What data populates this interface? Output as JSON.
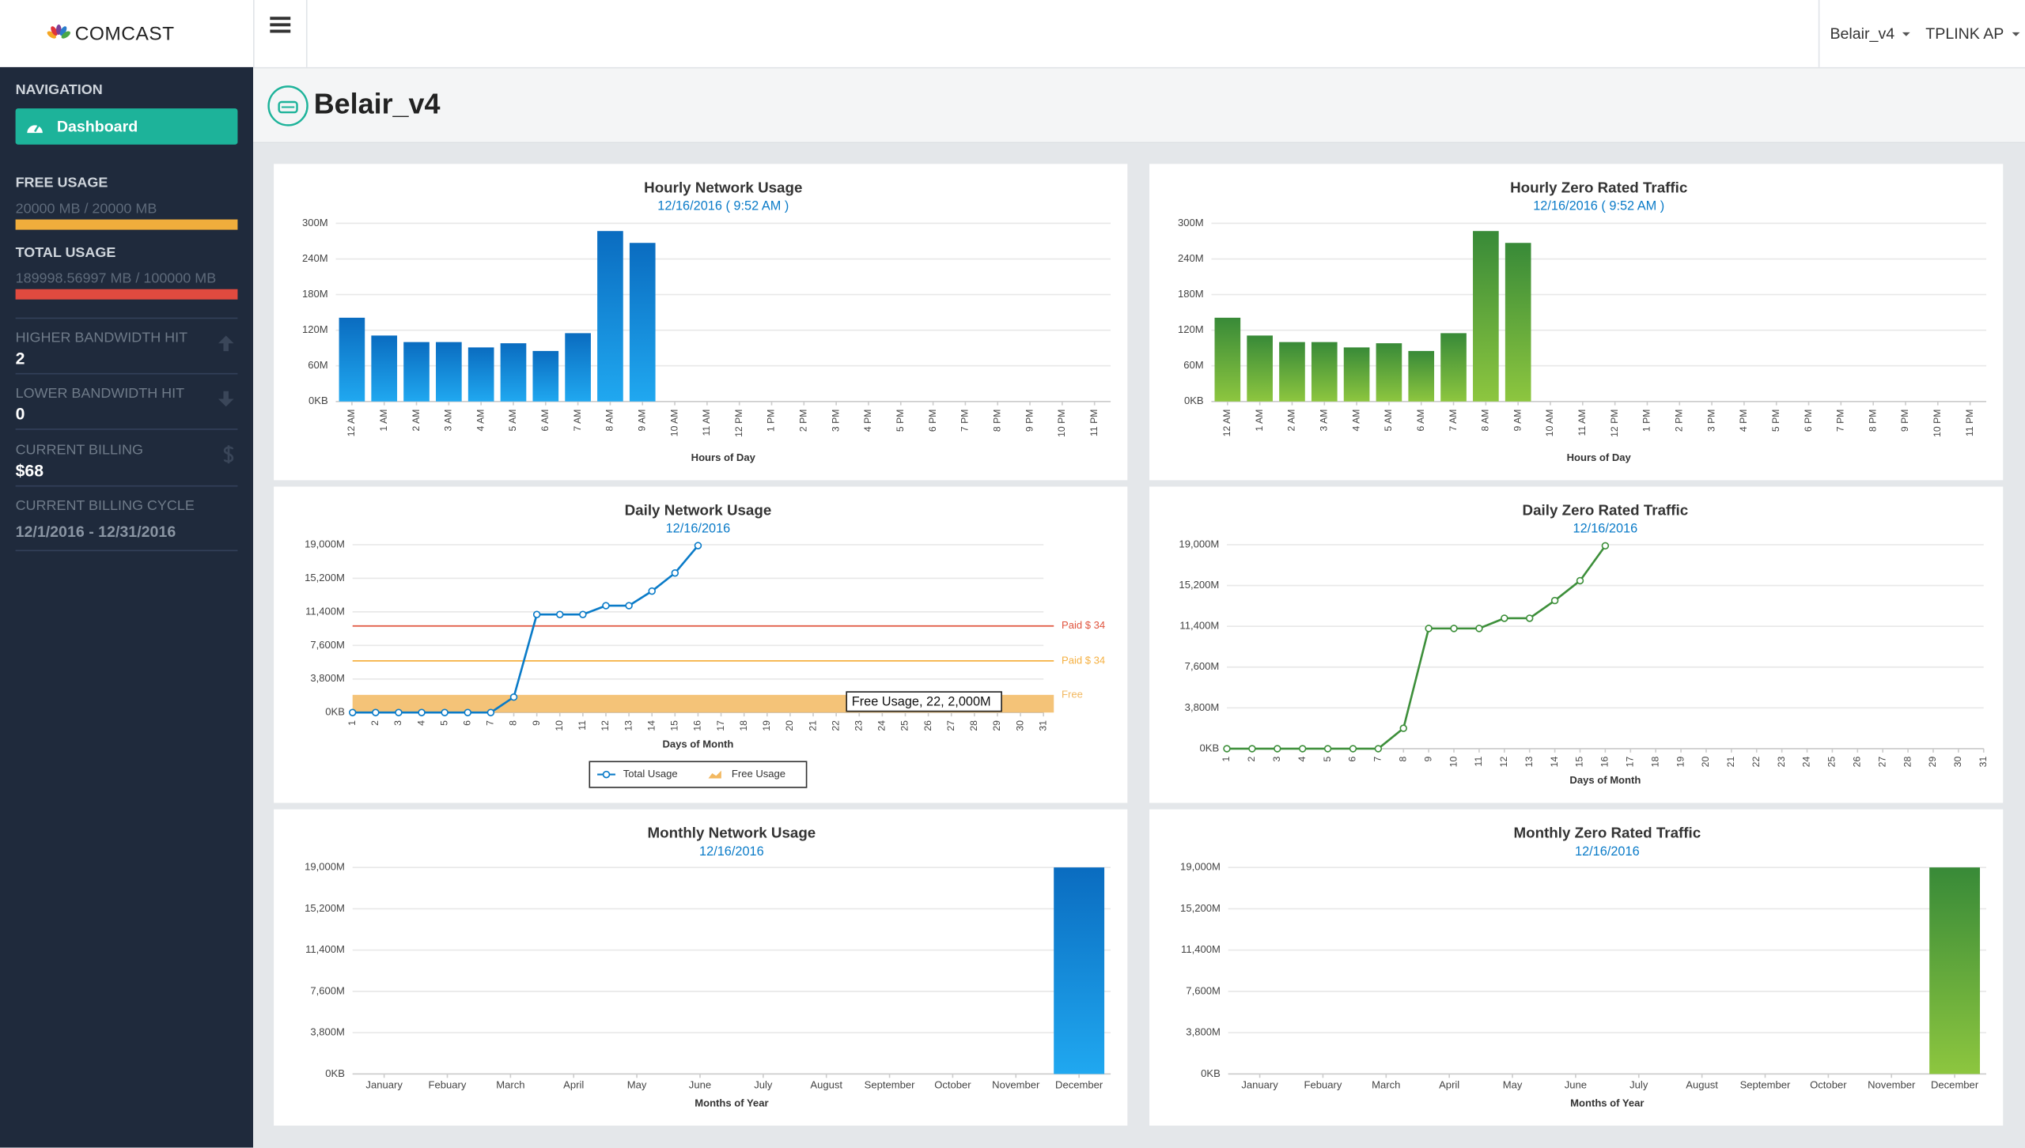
{
  "header": {
    "logo": "COMCAST",
    "site_selector": "Belair_v4",
    "device_selector": "TPLINK AP"
  },
  "sidebar": {
    "navigation_heading": "NAVIGATION",
    "nav_items": [
      "Dashboard"
    ],
    "stats": [
      {
        "label": "FREE USAGE",
        "value": "20000 MB / 20000 MB"
      },
      {
        "label": "TOTAL USAGE",
        "value": "189998.56997 MB / 100000 MB"
      },
      {
        "label": "HIGHER BANDWIDTH HIT",
        "value": "2"
      },
      {
        "label": "LOWER BANDWIDTH HIT",
        "value": "0"
      },
      {
        "label": "CURRENT BILLING",
        "value": "$68"
      },
      {
        "label": "CURRENT BILLING CYCLE",
        "value": "12/1/2016 - 12/31/2016"
      }
    ]
  },
  "page": {
    "title": "Belair_v4"
  },
  "chart_data": [
    {
      "type": "bar",
      "title": "Hourly Network Usage",
      "subtitle": "12/16/2016 ( 9:52 AM )",
      "x_label": "Hours of Day",
      "categories": [
        "12 AM",
        "1 AM",
        "2 AM",
        "3 AM",
        "4 AM",
        "5 AM",
        "6 AM",
        "7 AM",
        "8 AM",
        "9 AM",
        "10 AM",
        "11 AM",
        "12 PM",
        "1 PM",
        "2 PM",
        "3 PM",
        "4 PM",
        "5 PM",
        "6 PM",
        "7 PM",
        "8 PM",
        "9 PM",
        "10 PM",
        "11 PM"
      ],
      "values": [
        141,
        111,
        100,
        100,
        91,
        98,
        85,
        115,
        287,
        267,
        null,
        null,
        null,
        null,
        null,
        null,
        null,
        null,
        null,
        null,
        null,
        null,
        null,
        null
      ],
      "color": "#0a6cc0",
      "color2": "#20a8f0",
      "ylim": [
        0,
        300
      ],
      "yticks": [
        {
          "value": 0,
          "label": "0KB"
        },
        {
          "value": 60,
          "label": "60M"
        },
        {
          "value": 120,
          "label": "120M"
        },
        {
          "value": 180,
          "label": "180M"
        },
        {
          "value": 240,
          "label": "240M"
        },
        {
          "value": 300,
          "label": "300M"
        }
      ],
      "grid": true
    },
    {
      "type": "bar",
      "title": "Hourly Zero Rated Traffic",
      "subtitle": "12/16/2016 ( 9:52 AM )",
      "x_label": "Hours of Day",
      "categories": [
        "12 AM",
        "1 AM",
        "2 AM",
        "3 AM",
        "4 AM",
        "5 AM",
        "6 AM",
        "7 AM",
        "8 AM",
        "9 AM",
        "10 AM",
        "11 AM",
        "12 PM",
        "1 PM",
        "2 PM",
        "3 PM",
        "4 PM",
        "5 PM",
        "6 PM",
        "7 PM",
        "8 PM",
        "9 PM",
        "10 PM",
        "11 PM"
      ],
      "values": [
        141,
        111,
        100,
        100,
        91,
        98,
        85,
        115,
        287,
        267,
        null,
        null,
        null,
        null,
        null,
        null,
        null,
        null,
        null,
        null,
        null,
        null,
        null,
        null
      ],
      "color": "#388a38",
      "color2": "#8dc63f",
      "ylim": [
        0,
        300
      ],
      "yticks": [
        {
          "value": 0,
          "label": "0KB"
        },
        {
          "value": 60,
          "label": "60M"
        },
        {
          "value": 120,
          "label": "120M"
        },
        {
          "value": 180,
          "label": "180M"
        },
        {
          "value": 240,
          "label": "240M"
        },
        {
          "value": 300,
          "label": "300M"
        }
      ],
      "grid": true
    },
    {
      "type": "line",
      "title": "Daily Network Usage",
      "subtitle": "12/16/2016",
      "x_label": "Days of Month",
      "categories": [
        1,
        2,
        3,
        4,
        5,
        6,
        7,
        8,
        9,
        10,
        11,
        12,
        13,
        14,
        15,
        16,
        17,
        18,
        19,
        20,
        21,
        22,
        23,
        24,
        25,
        26,
        27,
        28,
        29,
        30,
        31
      ],
      "series": [
        {
          "name": "Total Usage",
          "color": "#0a7bc8",
          "values": [
            0,
            0,
            0,
            0,
            0,
            0,
            0,
            1750,
            11100,
            11100,
            11100,
            12100,
            12100,
            13750,
            15800,
            18900,
            null,
            null,
            null,
            null,
            null,
            null,
            null,
            null,
            null,
            null,
            null,
            null,
            null,
            null,
            null
          ]
        },
        {
          "name": "Free Usage",
          "color": "#f2b860",
          "style": "area",
          "band_label": "Free",
          "values": [
            2000,
            2000,
            2000,
            2000,
            2000,
            2000,
            2000,
            2000,
            2000,
            2000,
            2000,
            2000,
            2000,
            2000,
            2000,
            2000,
            2000,
            2000,
            2000,
            2000,
            2000,
            2000,
            2000,
            2000,
            2000,
            2000,
            2000,
            2000,
            2000,
            2000,
            2000
          ]
        }
      ],
      "reference_lines": [
        {
          "label": "Paid $ 34",
          "value": 9800,
          "color": "#e0533d"
        },
        {
          "label": "Paid $ 34",
          "value": 5850,
          "color": "#f5b041"
        }
      ],
      "tooltip": "Free Usage, 22, 2,000M",
      "legend": "bottom",
      "ylim": [
        0,
        19000
      ],
      "yticks": [
        {
          "value": 0,
          "label": "0KB"
        },
        {
          "value": 3800,
          "label": "3,800M"
        },
        {
          "value": 7600,
          "label": "7,600M"
        },
        {
          "value": 11400,
          "label": "11,400M"
        },
        {
          "value": 15200,
          "label": "15,200M"
        },
        {
          "value": 19000,
          "label": "19,000M"
        }
      ],
      "grid": true
    },
    {
      "type": "line",
      "title": "Daily Zero Rated Traffic",
      "subtitle": "12/16/2016",
      "x_label": "Days of Month",
      "categories": [
        1,
        2,
        3,
        4,
        5,
        6,
        7,
        8,
        9,
        10,
        11,
        12,
        13,
        14,
        15,
        16,
        17,
        18,
        19,
        20,
        21,
        22,
        23,
        24,
        25,
        26,
        27,
        28,
        29,
        30,
        31
      ],
      "values": [
        0,
        0,
        0,
        0,
        0,
        0,
        0,
        1900,
        11200,
        11200,
        11200,
        12150,
        12150,
        13800,
        15650,
        18900,
        null,
        null,
        null,
        null,
        null,
        null,
        null,
        null,
        null,
        null,
        null,
        null,
        null,
        null,
        null
      ],
      "color": "#3d8f3a",
      "ylim": [
        0,
        19000
      ],
      "yticks": [
        {
          "value": 0,
          "label": "0KB"
        },
        {
          "value": 3800,
          "label": "3,800M"
        },
        {
          "value": 7600,
          "label": "7,600M"
        },
        {
          "value": 11400,
          "label": "11,400M"
        },
        {
          "value": 15200,
          "label": "15,200M"
        },
        {
          "value": 19000,
          "label": "19,000M"
        }
      ],
      "grid": true
    },
    {
      "type": "bar",
      "title": "Monthly Network Usage",
      "subtitle": "12/16/2016",
      "x_label": "Months of Year",
      "categories": [
        "January",
        "Febuary",
        "March",
        "April",
        "May",
        "June",
        "July",
        "August",
        "September",
        "October",
        "November",
        "December"
      ],
      "values": [
        null,
        null,
        null,
        null,
        null,
        null,
        null,
        null,
        null,
        null,
        null,
        19000
      ],
      "color": "#0a6cc0",
      "color2": "#20a8f0",
      "ylim": [
        0,
        19000
      ],
      "yticks": [
        {
          "value": 0,
          "label": "0KB"
        },
        {
          "value": 3800,
          "label": "3,800M"
        },
        {
          "value": 7600,
          "label": "7,600M"
        },
        {
          "value": 11400,
          "label": "11,400M"
        },
        {
          "value": 15200,
          "label": "15,200M"
        },
        {
          "value": 19000,
          "label": "19,000M"
        }
      ],
      "grid": true
    },
    {
      "type": "bar",
      "title": "Monthly Zero Rated Traffic",
      "subtitle": "12/16/2016",
      "x_label": "Months of Year",
      "categories": [
        "January",
        "Febuary",
        "March",
        "April",
        "May",
        "June",
        "July",
        "August",
        "September",
        "October",
        "November",
        "December"
      ],
      "values": [
        null,
        null,
        null,
        null,
        null,
        null,
        null,
        null,
        null,
        null,
        null,
        19000
      ],
      "color": "#388a38",
      "color2": "#8dc63f",
      "ylim": [
        0,
        19000
      ],
      "yticks": [
        {
          "value": 0,
          "label": "0KB"
        },
        {
          "value": 3800,
          "label": "3,800M"
        },
        {
          "value": 7600,
          "label": "7,600M"
        },
        {
          "value": 11400,
          "label": "11,400M"
        },
        {
          "value": 15200,
          "label": "15,200M"
        },
        {
          "value": 19000,
          "label": "19,000M"
        }
      ],
      "grid": true
    }
  ]
}
